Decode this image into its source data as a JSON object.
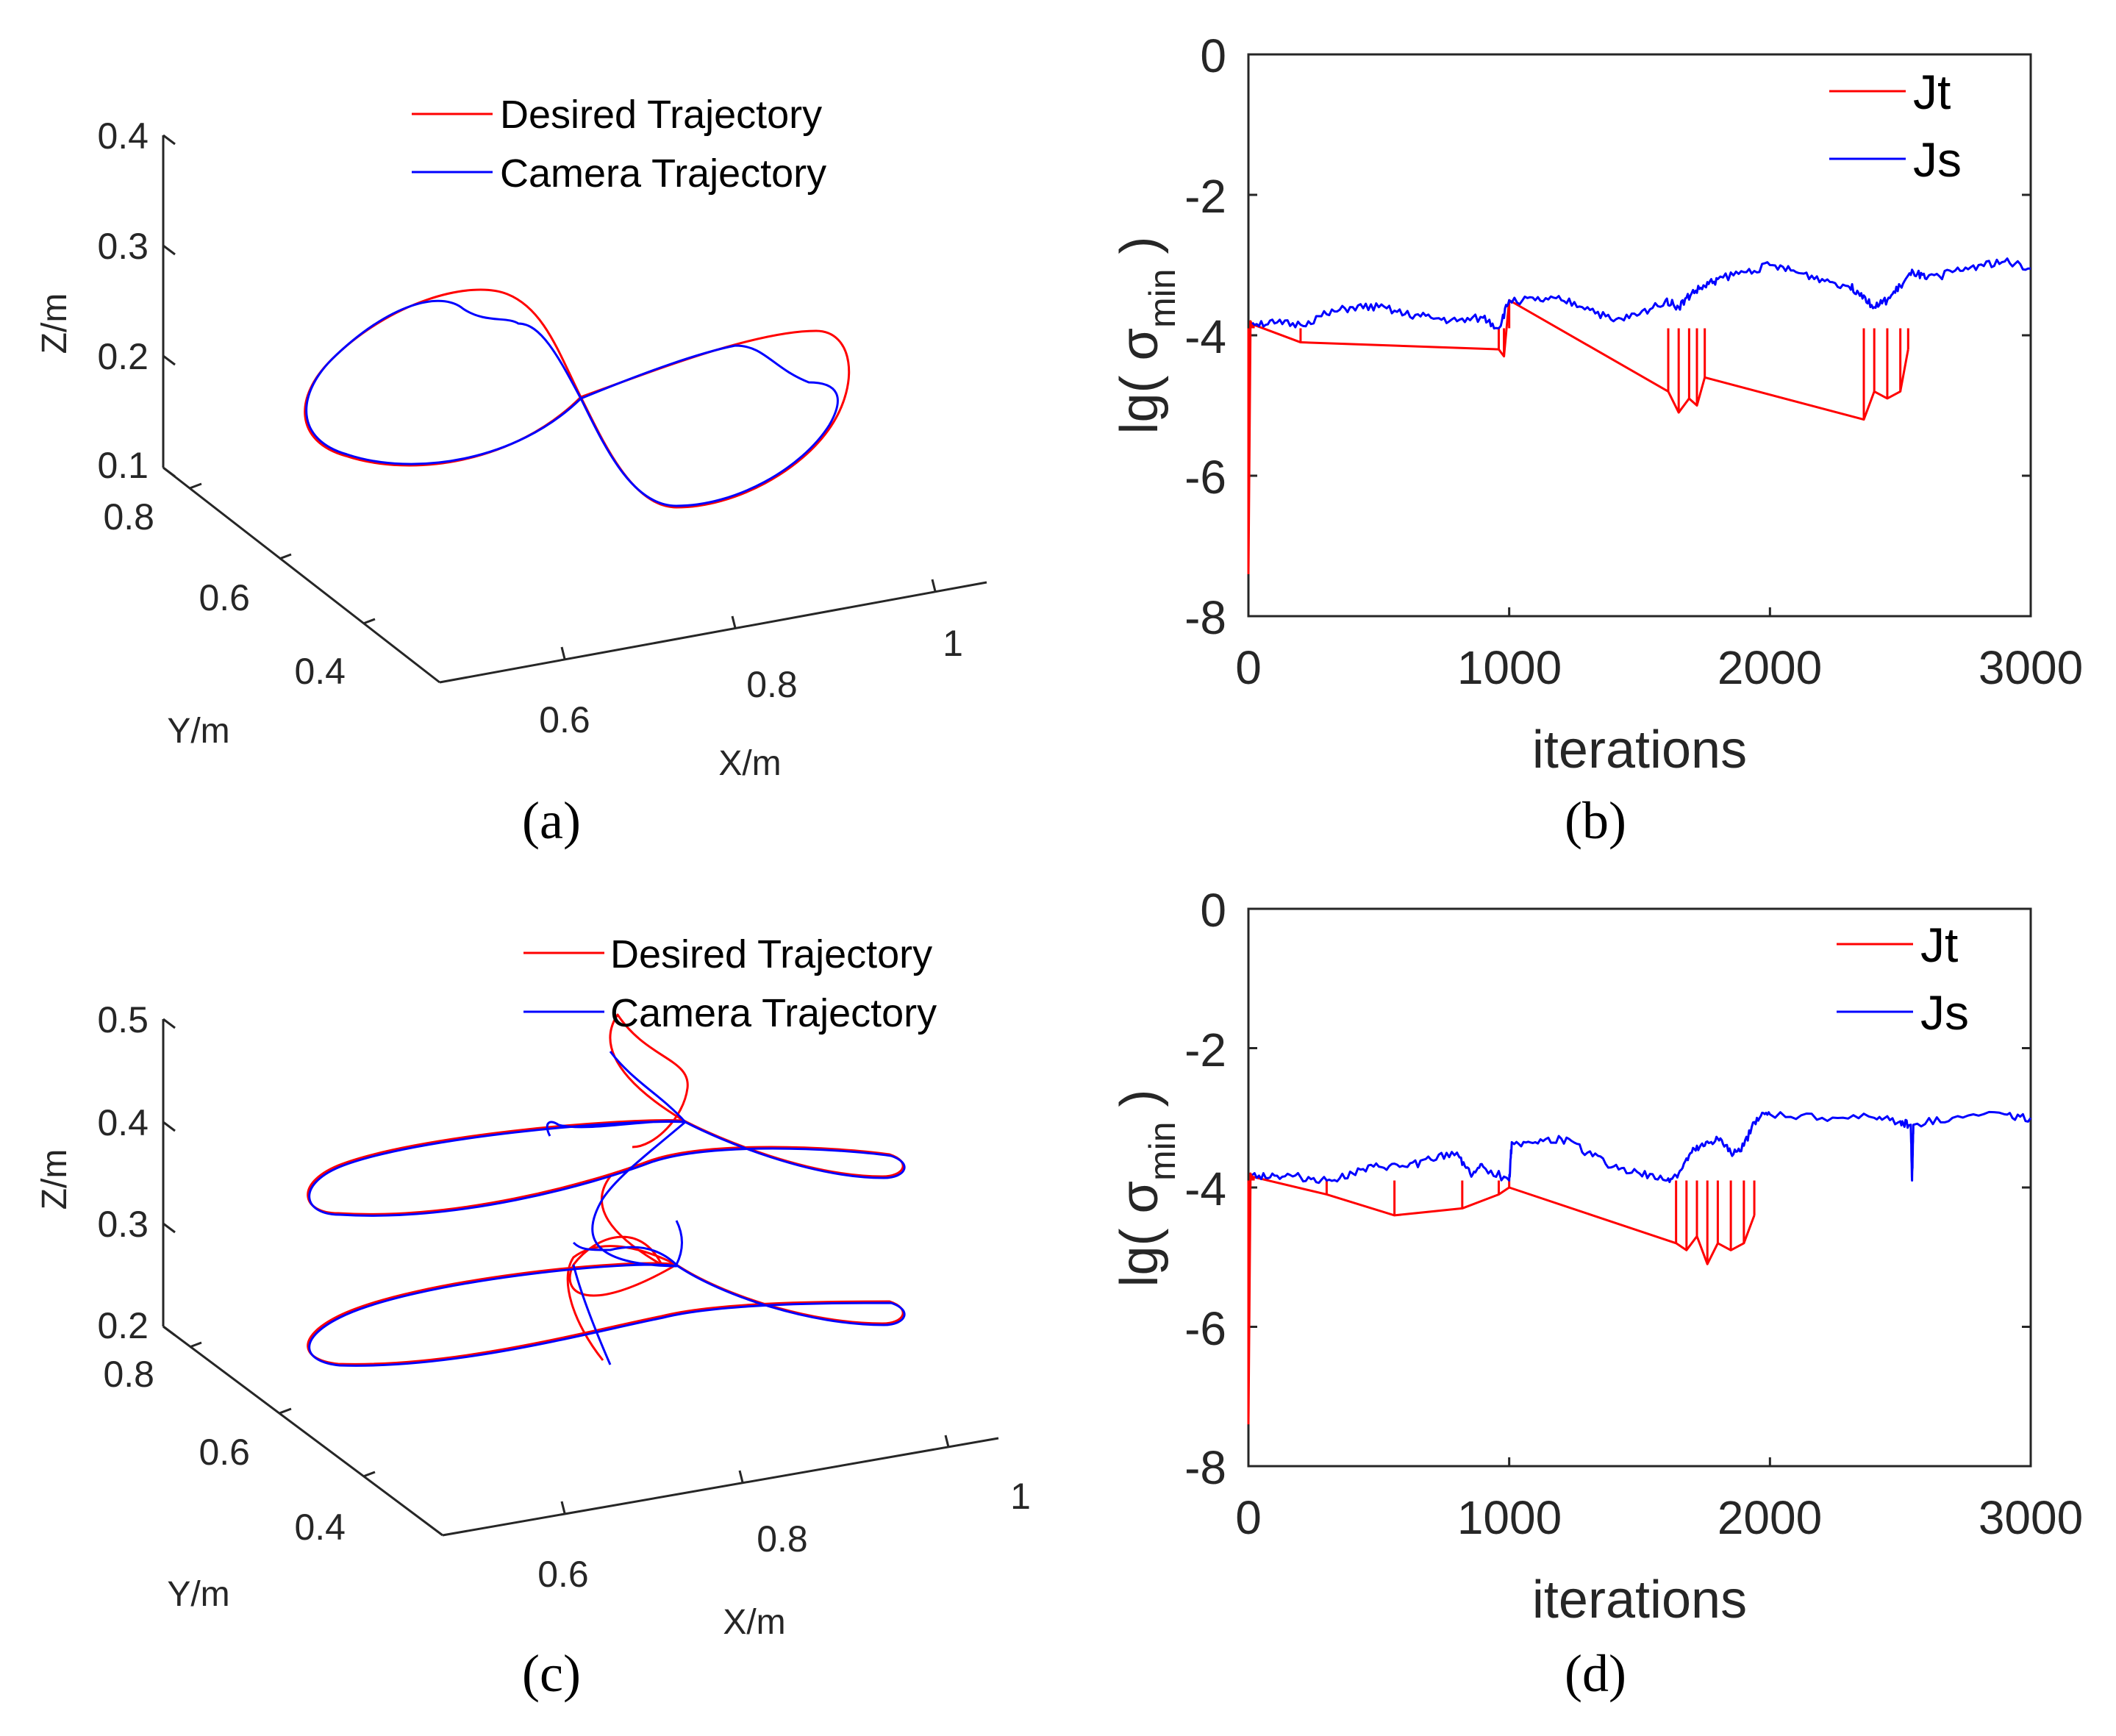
{
  "colors": {
    "red": "#ff0000",
    "blue": "#0000ff",
    "axis": "#262626"
  },
  "chart_data": [
    {
      "id": "a",
      "type": "line",
      "subtype": "3d-trajectory",
      "caption": "(a)",
      "xlabel": "X/m",
      "ylabel": "Y/m",
      "zlabel": "Z/m",
      "xticks": [
        "0.6",
        "0.8",
        "1"
      ],
      "yticks": [
        "0.4",
        "0.6",
        "0.8"
      ],
      "zticks": [
        "0.1",
        "0.2",
        "0.3",
        "0.4"
      ],
      "zlim": [
        0.1,
        0.4
      ],
      "legend": [
        "Desired Trajectory",
        "Camera Trajectory"
      ],
      "legend_position": "top",
      "series": [
        {
          "name": "Desired Trajectory",
          "color": "#ff0000",
          "shape": "figure-eight"
        },
        {
          "name": "Camera Trajectory",
          "color": "#0000ff",
          "shape": "figure-eight"
        }
      ]
    },
    {
      "id": "b",
      "type": "line",
      "caption": "(b)",
      "xlabel": "iterations",
      "ylabel": "lg( σ",
      "ylabel_sub": "min",
      "ylabel_close": " )",
      "xlim": [
        0,
        3000
      ],
      "ylim": [
        -8,
        0
      ],
      "xticks": [
        "0",
        "1000",
        "2000",
        "3000"
      ],
      "yticks": [
        "0",
        "-2",
        "-4",
        "-6",
        "-8"
      ],
      "legend": [
        "Jt",
        "Js"
      ],
      "legend_position": "top-right",
      "series": [
        {
          "name": "Jt",
          "color": "#ff0000",
          "x": [
            0,
            8,
            15,
            20,
            200,
            960,
            980,
            1000,
            1610,
            1650,
            1690,
            1720,
            1750,
            2360,
            2400,
            2450,
            2500,
            2530
          ],
          "y": [
            -7.4,
            -3.8,
            -3.85,
            -3.85,
            -4.1,
            -4.2,
            -4.3,
            -3.5,
            -4.8,
            -5.1,
            -4.9,
            -5.0,
            -4.6,
            -5.2,
            -4.8,
            -4.9,
            -4.8,
            -4.2
          ]
        },
        {
          "name": "Js",
          "color": "#0000ff",
          "x": [
            15,
            100,
            200,
            300,
            400,
            500,
            600,
            700,
            800,
            900,
            960,
            1000,
            1100,
            1200,
            1300,
            1400,
            1500,
            1600,
            1650,
            1700,
            1750,
            1800,
            1900,
            2000,
            2100,
            2200,
            2300,
            2350,
            2400,
            2450,
            2500,
            2550,
            2600,
            2700,
            2800,
            2900,
            3000
          ],
          "y": [
            -3.82,
            -3.83,
            -3.85,
            -3.7,
            -3.6,
            -3.6,
            -3.7,
            -3.75,
            -3.8,
            -3.75,
            -3.9,
            -3.5,
            -3.5,
            -3.5,
            -3.6,
            -3.8,
            -3.7,
            -3.5,
            -3.6,
            -3.4,
            -3.3,
            -3.2,
            -3.1,
            -3.0,
            -3.1,
            -3.2,
            -3.3,
            -3.4,
            -3.6,
            -3.5,
            -3.3,
            -3.1,
            -3.2,
            -3.1,
            -3.0,
            -2.95,
            -3.05
          ]
        }
      ]
    },
    {
      "id": "c",
      "type": "line",
      "subtype": "3d-trajectory",
      "caption": "(c)",
      "xlabel": "X/m",
      "ylabel": "Y/m",
      "zlabel": "Z/m",
      "xticks": [
        "0.6",
        "0.8",
        "1"
      ],
      "yticks": [
        "0.4",
        "0.6",
        "0.8"
      ],
      "zticks": [
        "0.2",
        "0.3",
        "0.4",
        "0.5"
      ],
      "zlim": [
        0.2,
        0.5
      ],
      "legend": [
        "Desired Trajectory",
        "Camera Trajectory"
      ],
      "legend_position": "top",
      "series": [
        {
          "name": "Desired Trajectory",
          "color": "#ff0000",
          "shape": "stacked figure-eight"
        },
        {
          "name": "Camera Trajectory",
          "color": "#0000ff",
          "shape": "stacked figure-eight"
        }
      ]
    },
    {
      "id": "d",
      "type": "line",
      "caption": "(d)",
      "xlabel": "iterations",
      "ylabel": "lg( σ",
      "ylabel_sub": "min",
      "ylabel_close": " )",
      "xlim": [
        0,
        3000
      ],
      "ylim": [
        -8,
        0
      ],
      "xticks": [
        "0",
        "1000",
        "2000",
        "3000"
      ],
      "yticks": [
        "0",
        "-2",
        "-4",
        "-6",
        "-8"
      ],
      "legend": [
        "Jt",
        "Js"
      ],
      "legend_position": "top-right",
      "series": [
        {
          "name": "Jt",
          "color": "#ff0000",
          "x": [
            0,
            8,
            15,
            20,
            300,
            560,
            820,
            960,
            1000,
            1640,
            1680,
            1720,
            1760,
            1800,
            1850,
            1900,
            1940
          ],
          "y": [
            -7.4,
            -3.8,
            -3.85,
            -3.85,
            -4.1,
            -4.4,
            -4.3,
            -4.1,
            -4.0,
            -4.8,
            -4.9,
            -4.7,
            -5.1,
            -4.8,
            -4.9,
            -4.8,
            -4.4
          ]
        },
        {
          "name": "Js",
          "color": "#0000ff",
          "x": [
            15,
            100,
            200,
            300,
            400,
            500,
            600,
            700,
            800,
            850,
            900,
            1000,
            1010,
            1100,
            1200,
            1300,
            1400,
            1500,
            1600,
            1650,
            1700,
            1750,
            1800,
            1850,
            1900,
            1950,
            2000,
            2200,
            2400,
            2500,
            2540,
            2545,
            2550,
            2700,
            2900,
            3000
          ],
          "y": [
            -3.82,
            -3.83,
            -3.85,
            -3.9,
            -3.8,
            -3.7,
            -3.7,
            -3.6,
            -3.5,
            -3.8,
            -3.7,
            -3.9,
            -3.35,
            -3.35,
            -3.3,
            -3.5,
            -3.7,
            -3.8,
            -3.9,
            -3.8,
            -3.5,
            -3.4,
            -3.3,
            -3.5,
            -3.4,
            -3.0,
            -2.95,
            -3.0,
            -3.0,
            -3.05,
            -3.1,
            -3.9,
            -3.1,
            -3.0,
            -2.95,
            -3.0
          ]
        }
      ]
    }
  ]
}
